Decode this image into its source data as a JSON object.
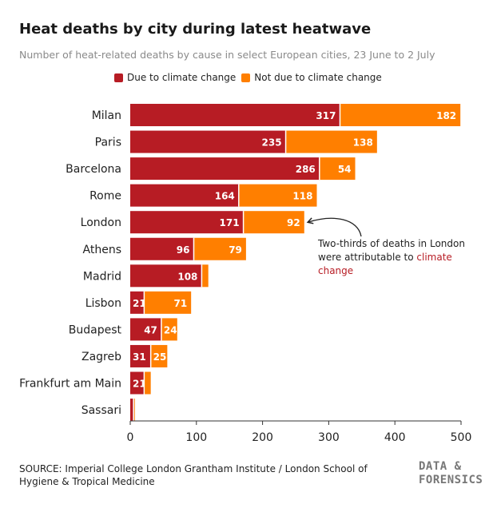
{
  "header": {
    "title": "Heat deaths by city during latest heatwave",
    "subtitle": "Number of heat-related deaths by cause in select European cities, 23 June to 2 July"
  },
  "legend": [
    {
      "label": "Due to climate change",
      "color": "#b71c24"
    },
    {
      "label": "Not due to climate change",
      "color": "#ff7f00"
    }
  ],
  "chart_data": {
    "type": "bar",
    "orientation": "horizontal",
    "stacked": true,
    "categories": [
      "Milan",
      "Paris",
      "Barcelona",
      "Rome",
      "London",
      "Athens",
      "Madrid",
      "Lisbon",
      "Budapest",
      "Zagreb",
      "Frankfurt am Main",
      "Sassari"
    ],
    "series": [
      {
        "name": "Due to climate change",
        "color": "#b71c24",
        "values": [
          317,
          235,
          286,
          164,
          171,
          96,
          108,
          21,
          47,
          31,
          21,
          5
        ]
      },
      {
        "name": "Not due to climate change",
        "color": "#ff7f00",
        "values": [
          182,
          138,
          54,
          118,
          92,
          79,
          10,
          71,
          24,
          25,
          10,
          2
        ]
      }
    ],
    "labels": {
      "Due to climate change": [
        "317",
        "235",
        "286",
        "164",
        "171",
        "96",
        "108",
        "21",
        "47",
        "31",
        "21",
        ""
      ],
      "Not due to climate change": [
        "182",
        "138",
        "54",
        "118",
        "92",
        "79",
        "",
        "71",
        "24",
        "25",
        "",
        ""
      ]
    },
    "xticks": [
      0,
      100,
      200,
      300,
      400,
      500
    ],
    "xlim": [
      0,
      500
    ],
    "grid": false
  },
  "annotation": {
    "text_before": "Two-thirds of deaths in London were attributable to ",
    "highlight": "climate change",
    "target": "London"
  },
  "footer": {
    "source": "SOURCE: Imperial College London Grantham Institute / London School of Hygiene & Tropical Medicine",
    "brand_line1": "DATA &",
    "brand_line2": "FORENSICS"
  }
}
